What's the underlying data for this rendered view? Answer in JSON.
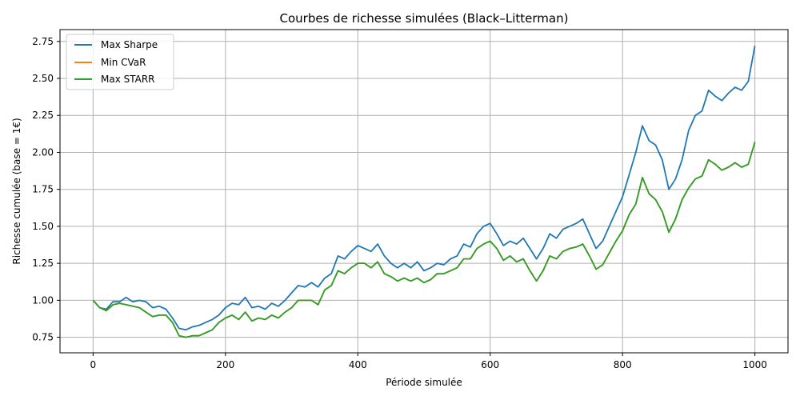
{
  "chart_data": {
    "type": "line",
    "title": "Courbes de richesse simulées (Black–Litterman)",
    "xlabel": "Période simulée",
    "ylabel": "Richesse cumulée (base = 1€)",
    "xlim": [
      -50,
      1050
    ],
    "ylim": [
      0.645,
      2.83
    ],
    "xticks": [
      0,
      200,
      400,
      600,
      800,
      1000
    ],
    "xtick_labels": [
      "0",
      "200",
      "400",
      "600",
      "800",
      "1000"
    ],
    "yticks": [
      0.75,
      1.0,
      1.25,
      1.5,
      1.75,
      2.0,
      2.25,
      2.5,
      2.75
    ],
    "ytick_labels": [
      "0.75",
      "1.00",
      "1.25",
      "1.50",
      "1.75",
      "2.00",
      "2.25",
      "2.50",
      "2.75"
    ],
    "grid": true,
    "legend_position": "top-left",
    "series": [
      {
        "name": "Max Sharpe",
        "color": "#1f77b4",
        "x": [
          0,
          10,
          20,
          30,
          40,
          50,
          60,
          70,
          80,
          90,
          100,
          110,
          120,
          130,
          140,
          150,
          160,
          170,
          180,
          190,
          200,
          210,
          220,
          230,
          240,
          250,
          260,
          270,
          280,
          290,
          300,
          310,
          320,
          330,
          340,
          350,
          360,
          370,
          380,
          390,
          400,
          410,
          420,
          430,
          440,
          450,
          460,
          470,
          480,
          490,
          500,
          510,
          520,
          530,
          540,
          550,
          560,
          570,
          580,
          590,
          600,
          610,
          620,
          630,
          640,
          650,
          660,
          670,
          680,
          690,
          700,
          710,
          720,
          730,
          740,
          750,
          760,
          770,
          780,
          790,
          800,
          810,
          820,
          830,
          840,
          850,
          860,
          870,
          880,
          890,
          900,
          910,
          920,
          930,
          940,
          950,
          960,
          970,
          980,
          990,
          1000
        ],
        "values": [
          1.0,
          0.95,
          0.94,
          0.99,
          0.99,
          1.02,
          0.99,
          1.0,
          0.99,
          0.95,
          0.96,
          0.94,
          0.88,
          0.81,
          0.8,
          0.82,
          0.83,
          0.85,
          0.87,
          0.9,
          0.95,
          0.98,
          0.97,
          1.02,
          0.95,
          0.96,
          0.94,
          0.98,
          0.96,
          1.0,
          1.05,
          1.1,
          1.09,
          1.12,
          1.09,
          1.15,
          1.18,
          1.3,
          1.28,
          1.33,
          1.37,
          1.35,
          1.33,
          1.38,
          1.3,
          1.25,
          1.22,
          1.25,
          1.22,
          1.26,
          1.2,
          1.22,
          1.25,
          1.24,
          1.28,
          1.3,
          1.38,
          1.36,
          1.45,
          1.5,
          1.52,
          1.45,
          1.37,
          1.4,
          1.38,
          1.42,
          1.35,
          1.28,
          1.35,
          1.45,
          1.42,
          1.48,
          1.5,
          1.52,
          1.55,
          1.45,
          1.35,
          1.4,
          1.5,
          1.6,
          1.7,
          1.85,
          2.0,
          2.18,
          2.08,
          2.05,
          1.95,
          1.75,
          1.82,
          1.95,
          2.15,
          2.25,
          2.28,
          2.42,
          2.38,
          2.35,
          2.4,
          2.44,
          2.42,
          2.48,
          2.72
        ]
      },
      {
        "name": "Min CVaR",
        "color": "#ff7f0e",
        "x": [
          0,
          10,
          20,
          30,
          40,
          50,
          60,
          70,
          80,
          90,
          100,
          110,
          120,
          130,
          140,
          150,
          160,
          170,
          180,
          190,
          200,
          210,
          220,
          230,
          240,
          250,
          260,
          270,
          280,
          290,
          300,
          310,
          320,
          330,
          340,
          350,
          360,
          370,
          380,
          390,
          400,
          410,
          420,
          430,
          440,
          450,
          460,
          470,
          480,
          490,
          500,
          510,
          520,
          530,
          540,
          550,
          560,
          570,
          580,
          590,
          600,
          610,
          620,
          630,
          640,
          650,
          660,
          670,
          680,
          690,
          700,
          710,
          720,
          730,
          740,
          750,
          760,
          770,
          780,
          790,
          800,
          810,
          820,
          830,
          840,
          850,
          860,
          870,
          880,
          890,
          900,
          910,
          920,
          930,
          940,
          950,
          960,
          970,
          980,
          990,
          1000
        ],
        "values": [
          1.0,
          0.95,
          0.93,
          0.97,
          0.98,
          0.97,
          0.96,
          0.95,
          0.92,
          0.89,
          0.9,
          0.9,
          0.85,
          0.76,
          0.75,
          0.76,
          0.76,
          0.78,
          0.8,
          0.85,
          0.88,
          0.9,
          0.87,
          0.92,
          0.86,
          0.88,
          0.87,
          0.9,
          0.88,
          0.92,
          0.95,
          1.0,
          1.0,
          1.0,
          0.97,
          1.07,
          1.1,
          1.2,
          1.18,
          1.22,
          1.25,
          1.25,
          1.22,
          1.26,
          1.18,
          1.16,
          1.13,
          1.15,
          1.13,
          1.15,
          1.12,
          1.14,
          1.18,
          1.18,
          1.2,
          1.22,
          1.28,
          1.28,
          1.35,
          1.38,
          1.4,
          1.35,
          1.27,
          1.3,
          1.26,
          1.28,
          1.2,
          1.13,
          1.2,
          1.3,
          1.28,
          1.33,
          1.35,
          1.36,
          1.38,
          1.3,
          1.21,
          1.24,
          1.32,
          1.4,
          1.47,
          1.58,
          1.65,
          1.83,
          1.72,
          1.68,
          1.6,
          1.46,
          1.55,
          1.68,
          1.76,
          1.82,
          1.84,
          1.95,
          1.92,
          1.88,
          1.9,
          1.93,
          1.9,
          1.92,
          2.07
        ]
      },
      {
        "name": "Max STARR",
        "color": "#2ca02c",
        "x": [
          0,
          10,
          20,
          30,
          40,
          50,
          60,
          70,
          80,
          90,
          100,
          110,
          120,
          130,
          140,
          150,
          160,
          170,
          180,
          190,
          200,
          210,
          220,
          230,
          240,
          250,
          260,
          270,
          280,
          290,
          300,
          310,
          320,
          330,
          340,
          350,
          360,
          370,
          380,
          390,
          400,
          410,
          420,
          430,
          440,
          450,
          460,
          470,
          480,
          490,
          500,
          510,
          520,
          530,
          540,
          550,
          560,
          570,
          580,
          590,
          600,
          610,
          620,
          630,
          640,
          650,
          660,
          670,
          680,
          690,
          700,
          710,
          720,
          730,
          740,
          750,
          760,
          770,
          780,
          790,
          800,
          810,
          820,
          830,
          840,
          850,
          860,
          870,
          880,
          890,
          900,
          910,
          920,
          930,
          940,
          950,
          960,
          970,
          980,
          990,
          1000
        ],
        "values": [
          1.0,
          0.95,
          0.93,
          0.97,
          0.98,
          0.97,
          0.96,
          0.95,
          0.92,
          0.89,
          0.9,
          0.9,
          0.85,
          0.76,
          0.75,
          0.76,
          0.76,
          0.78,
          0.8,
          0.85,
          0.88,
          0.9,
          0.87,
          0.92,
          0.86,
          0.88,
          0.87,
          0.9,
          0.88,
          0.92,
          0.95,
          1.0,
          1.0,
          1.0,
          0.97,
          1.07,
          1.1,
          1.2,
          1.18,
          1.22,
          1.25,
          1.25,
          1.22,
          1.26,
          1.18,
          1.16,
          1.13,
          1.15,
          1.13,
          1.15,
          1.12,
          1.14,
          1.18,
          1.18,
          1.2,
          1.22,
          1.28,
          1.28,
          1.35,
          1.38,
          1.4,
          1.35,
          1.27,
          1.3,
          1.26,
          1.28,
          1.2,
          1.13,
          1.2,
          1.3,
          1.28,
          1.33,
          1.35,
          1.36,
          1.38,
          1.3,
          1.21,
          1.24,
          1.32,
          1.4,
          1.47,
          1.58,
          1.65,
          1.83,
          1.72,
          1.68,
          1.6,
          1.46,
          1.55,
          1.68,
          1.76,
          1.82,
          1.84,
          1.95,
          1.92,
          1.88,
          1.9,
          1.93,
          1.9,
          1.92,
          2.07
        ]
      }
    ]
  }
}
